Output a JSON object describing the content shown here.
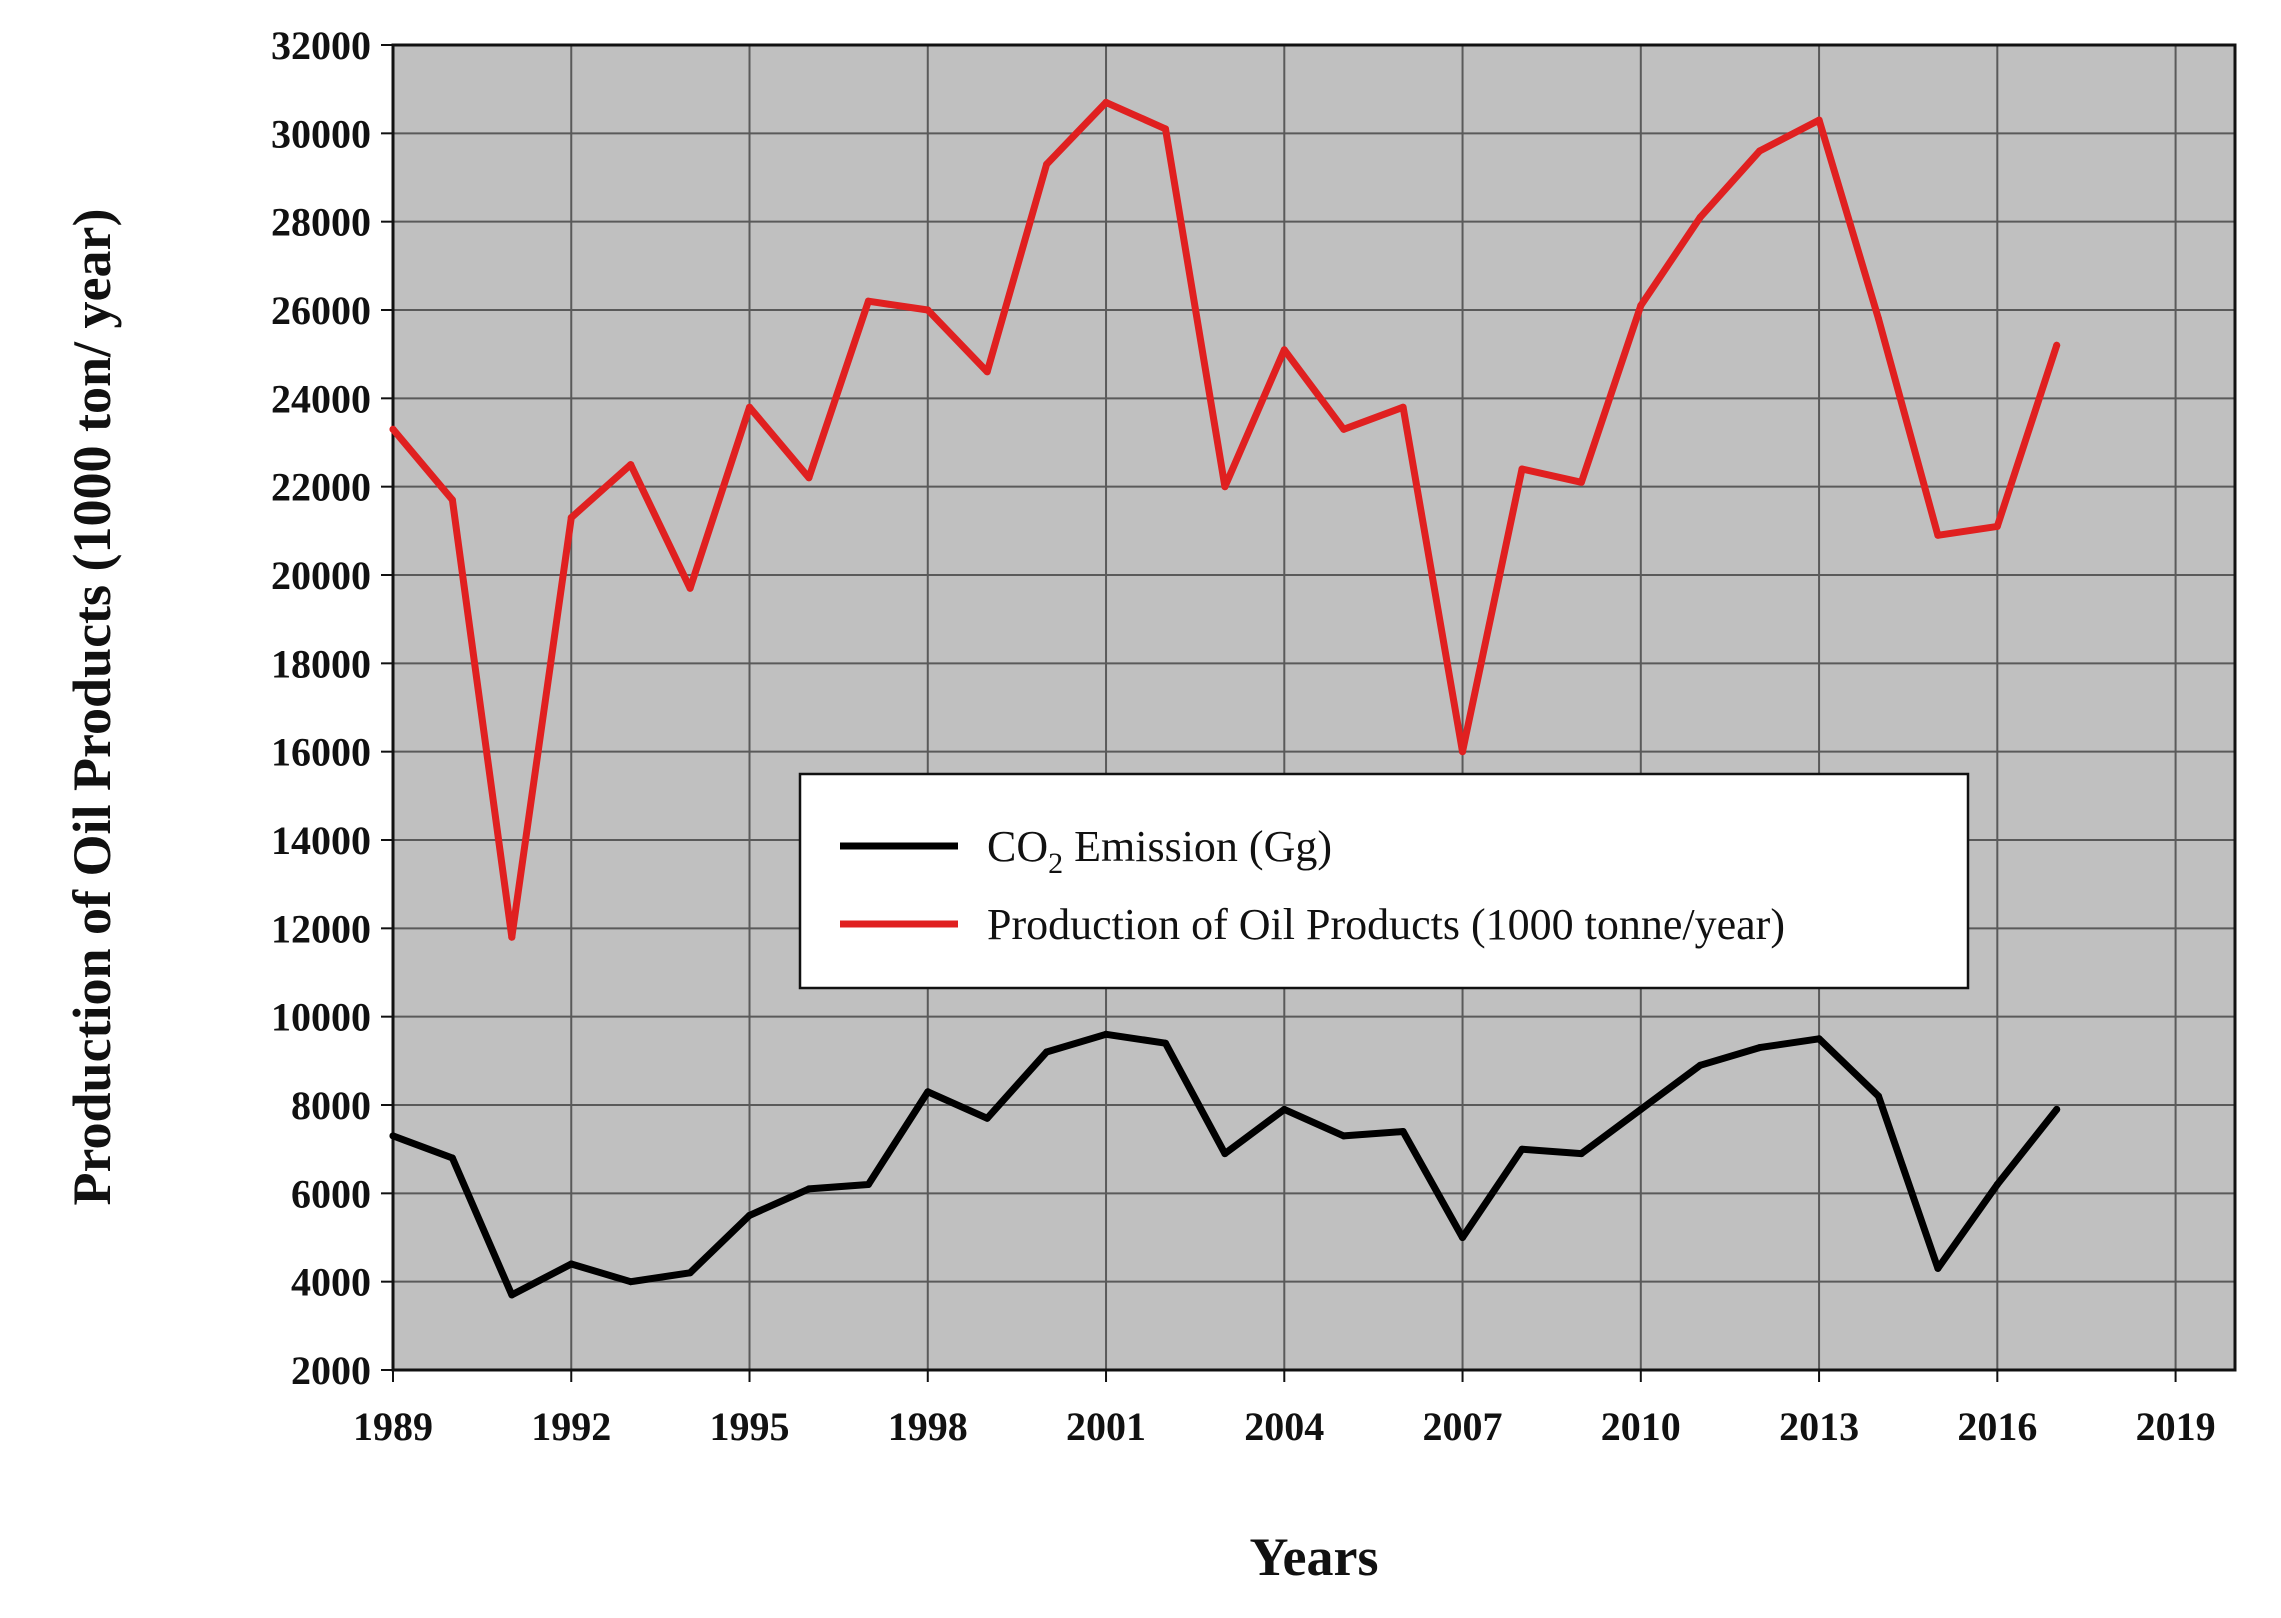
{
  "chart_data": {
    "type": "line",
    "title": "",
    "xlabel": "Years",
    "ylabel": "Production of Oil Products (1000 ton/ year)",
    "xlim": [
      1989,
      2020
    ],
    "ylim": [
      2000,
      32000
    ],
    "x_ticks": [
      "1989",
      "1992",
      "1995",
      "1998",
      "2001",
      "2004",
      "2007",
      "2010",
      "2013",
      "2016",
      "2019"
    ],
    "y_ticks": [
      "2000",
      "4000",
      "6000",
      "8000",
      "10000",
      "12000",
      "14000",
      "16000",
      "18000",
      "20000",
      "22000",
      "24000",
      "26000",
      "28000",
      "30000",
      "32000"
    ],
    "grid": true,
    "legend_position": "center",
    "x": [
      1989,
      1990,
      1991,
      1992,
      1993,
      1994,
      1995,
      1996,
      1997,
      1998,
      1999,
      2000,
      2001,
      2002,
      2003,
      2004,
      2005,
      2006,
      2007,
      2008,
      2009,
      2010,
      2011,
      2012,
      2013,
      2014,
      2015,
      2016,
      2017
    ],
    "series": [
      {
        "name": "CO2 Emission (Gg)",
        "legend_main": "CO",
        "legend_sub": "2",
        "legend_rest": " Emission (Gg)",
        "color": "#000000",
        "values": [
          7300,
          6800,
          3700,
          4400,
          4000,
          4200,
          5500,
          6100,
          6200,
          8300,
          7700,
          9200,
          9600,
          9400,
          6900,
          7900,
          7300,
          7400,
          5000,
          7000,
          6900,
          7900,
          8900,
          9300,
          9500,
          8200,
          4300,
          6200,
          7900
        ]
      },
      {
        "name": "Production of Oil Products (1000 tonne/year)",
        "legend_main": "Production of Oil Products (1000 tonne/year)",
        "color": "#e02020",
        "values": [
          23300,
          21700,
          11800,
          21300,
          22500,
          19700,
          23800,
          22200,
          26200,
          26000,
          24600,
          29300,
          30700,
          30100,
          22000,
          25100,
          23300,
          23800,
          16000,
          22400,
          22100,
          26100,
          28100,
          29600,
          30300,
          25800,
          20900,
          21100,
          25200
        ]
      }
    ]
  }
}
